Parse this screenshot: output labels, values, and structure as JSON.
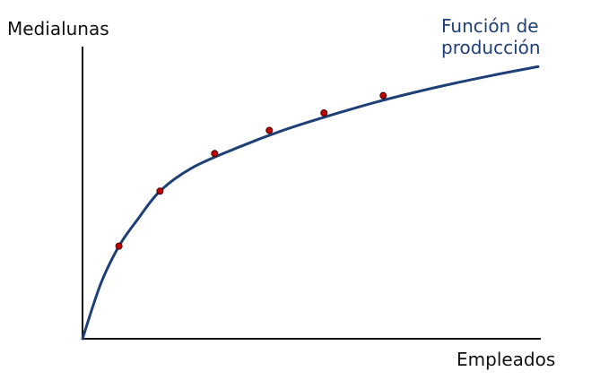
{
  "chart_data": {
    "type": "line",
    "title": "",
    "xlabel": "Empleados",
    "ylabel": "Medialunas",
    "xlim": [
      0,
      100
    ],
    "ylim": [
      0,
      100
    ],
    "grid": false,
    "legend": "none",
    "series": [
      {
        "name": "Función de producción",
        "label_lines": [
          "Función de",
          "producción"
        ],
        "color": "#1f3f77",
        "x": [
          0,
          4,
          8,
          12,
          17,
          24,
          34,
          44,
          54,
          65,
          78,
          90,
          100
        ],
        "y": [
          0,
          19,
          32,
          41,
          51,
          59,
          66,
          72,
          77,
          82,
          87,
          91,
          94
        ]
      }
    ],
    "points": {
      "color": "#c00000",
      "x": [
        8,
        17,
        29,
        41,
        53,
        66
      ],
      "y": [
        32,
        51,
        64,
        72,
        78,
        84
      ]
    }
  }
}
